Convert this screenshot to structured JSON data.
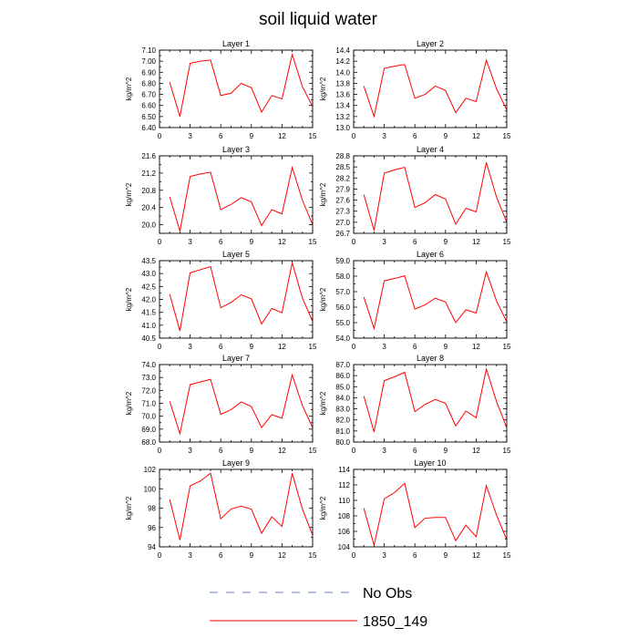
{
  "title": "soil liquid water",
  "colors": {
    "series": "#ff0000",
    "no_obs_line": "#6b7fd1",
    "axis": "#000000"
  },
  "legend": [
    {
      "label": "No Obs",
      "style": "dashed",
      "color": "#6b7fd1"
    },
    {
      "label": "1850_149",
      "style": "solid",
      "color": "#ff0000"
    }
  ],
  "chart_data": [
    {
      "type": "line",
      "title": "Layer 1",
      "xlabel": "",
      "ylabel": "kg/m^2",
      "xlim": [
        0,
        15
      ],
      "xticks": [
        "0",
        "3",
        "6",
        "9",
        "12",
        "15"
      ],
      "ylim": [
        6.4,
        7.1
      ],
      "yticks": [
        "6.40",
        "6.50",
        "6.60",
        "6.70",
        "6.80",
        "6.90",
        "7.00",
        "7.10"
      ],
      "x": [
        1,
        2,
        3,
        4,
        5,
        6,
        7,
        8,
        9,
        10,
        11,
        12,
        13,
        14,
        15
      ],
      "series": [
        {
          "name": "1850_149",
          "values": [
            6.81,
            6.5,
            6.98,
            7.0,
            7.01,
            6.69,
            6.71,
            6.8,
            6.76,
            6.54,
            6.69,
            6.66,
            7.06,
            6.77,
            6.59
          ]
        }
      ]
    },
    {
      "type": "line",
      "title": "Layer 2",
      "xlabel": "",
      "ylabel": "kg/m^2",
      "xlim": [
        0,
        15
      ],
      "xticks": [
        "0",
        "3",
        "6",
        "9",
        "12",
        "15"
      ],
      "ylim": [
        13.0,
        14.4
      ],
      "yticks": [
        "13.0",
        "13.2",
        "13.4",
        "13.6",
        "13.8",
        "14.0",
        "14.2",
        "14.4"
      ],
      "x": [
        1,
        2,
        3,
        4,
        5,
        6,
        7,
        8,
        9,
        10,
        11,
        12,
        13,
        14,
        15
      ],
      "series": [
        {
          "name": "1850_149",
          "values": [
            13.75,
            13.2,
            14.07,
            14.11,
            14.14,
            13.53,
            13.6,
            13.75,
            13.67,
            13.27,
            13.53,
            13.47,
            14.22,
            13.7,
            13.32
          ]
        }
      ]
    },
    {
      "type": "line",
      "title": "Layer 3",
      "xlabel": "",
      "ylabel": "kg/m^2",
      "xlim": [
        0,
        15
      ],
      "xticks": [
        "0",
        "3",
        "6",
        "9",
        "12",
        "15"
      ],
      "ylim": [
        19.8,
        21.6
      ],
      "yticks": [
        "20.0",
        "20.4",
        "20.8",
        "21.2",
        "21.6"
      ],
      "x": [
        1,
        2,
        3,
        4,
        5,
        6,
        7,
        8,
        9,
        10,
        11,
        12,
        13,
        14,
        15
      ],
      "series": [
        {
          "name": "1850_149",
          "values": [
            20.65,
            19.85,
            21.12,
            21.18,
            21.22,
            20.35,
            20.47,
            20.63,
            20.53,
            19.98,
            20.35,
            20.25,
            21.33,
            20.57,
            20.0
          ]
        }
      ]
    },
    {
      "type": "line",
      "title": "Layer 4",
      "xlabel": "",
      "ylabel": "kg/m^2",
      "xlim": [
        0,
        15
      ],
      "xticks": [
        "0",
        "3",
        "6",
        "9",
        "12",
        "15"
      ],
      "ylim": [
        26.7,
        28.8
      ],
      "yticks": [
        "26.7",
        "27.0",
        "27.3",
        "27.6",
        "27.9",
        "28.2",
        "28.5",
        "28.8"
      ],
      "x": [
        1,
        2,
        3,
        4,
        5,
        6,
        7,
        8,
        9,
        10,
        11,
        12,
        13,
        14,
        15
      ],
      "series": [
        {
          "name": "1850_149",
          "values": [
            27.75,
            26.78,
            28.33,
            28.42,
            28.49,
            27.4,
            27.53,
            27.75,
            27.63,
            26.95,
            27.38,
            27.28,
            28.62,
            27.68,
            27.0
          ]
        }
      ]
    },
    {
      "type": "line",
      "title": "Layer 5",
      "xlabel": "",
      "ylabel": "kg/m^2",
      "xlim": [
        0,
        15
      ],
      "xticks": [
        "0",
        "3",
        "6",
        "9",
        "12",
        "15"
      ],
      "ylim": [
        40.5,
        43.5
      ],
      "yticks": [
        "40.5",
        "41.0",
        "41.5",
        "42.0",
        "42.5",
        "43.0",
        "43.5"
      ],
      "x": [
        1,
        2,
        3,
        4,
        5,
        6,
        7,
        8,
        9,
        10,
        11,
        12,
        13,
        14,
        15
      ],
      "series": [
        {
          "name": "1850_149",
          "values": [
            42.2,
            40.78,
            43.03,
            43.15,
            43.27,
            41.68,
            41.88,
            42.18,
            42.02,
            41.05,
            41.65,
            41.48,
            43.42,
            42.05,
            41.15
          ]
        }
      ]
    },
    {
      "type": "line",
      "title": "Layer 6",
      "xlabel": "",
      "ylabel": "kg/m^2",
      "xlim": [
        0,
        15
      ],
      "xticks": [
        "0",
        "3",
        "6",
        "9",
        "12",
        "15"
      ],
      "ylim": [
        54.0,
        59.0
      ],
      "yticks": [
        "54.0",
        "55.0",
        "56.0",
        "57.0",
        "58.0",
        "59.0"
      ],
      "x": [
        1,
        2,
        3,
        4,
        5,
        6,
        7,
        8,
        9,
        10,
        11,
        12,
        13,
        14,
        15
      ],
      "series": [
        {
          "name": "1850_149",
          "values": [
            56.65,
            54.62,
            57.7,
            57.85,
            58.02,
            55.87,
            56.15,
            56.58,
            56.33,
            55.0,
            55.83,
            55.62,
            58.28,
            56.4,
            55.05
          ]
        }
      ]
    },
    {
      "type": "line",
      "title": "Layer 7",
      "xlabel": "",
      "ylabel": "kg/m^2",
      "xlim": [
        0,
        15
      ],
      "xticks": [
        "0",
        "3",
        "6",
        "9",
        "12",
        "15"
      ],
      "ylim": [
        68.0,
        74.0
      ],
      "yticks": [
        "68.0",
        "69.0",
        "70.0",
        "71.0",
        "72.0",
        "73.0",
        "74.0"
      ],
      "x": [
        1,
        2,
        3,
        4,
        5,
        6,
        7,
        8,
        9,
        10,
        11,
        12,
        13,
        14,
        15
      ],
      "series": [
        {
          "name": "1850_149",
          "values": [
            71.15,
            68.65,
            72.45,
            72.65,
            72.85,
            70.15,
            70.5,
            71.1,
            70.75,
            69.12,
            70.12,
            69.85,
            73.2,
            70.82,
            69.12
          ]
        }
      ]
    },
    {
      "type": "line",
      "title": "Layer 8",
      "xlabel": "",
      "ylabel": "kg/m^2",
      "xlim": [
        0,
        15
      ],
      "xticks": [
        "0",
        "3",
        "6",
        "9",
        "12",
        "15"
      ],
      "ylim": [
        80.0,
        87.0
      ],
      "yticks": [
        "80.0",
        "81.0",
        "82.0",
        "83.0",
        "84.0",
        "85.0",
        "86.0",
        "87.0"
      ],
      "x": [
        1,
        2,
        3,
        4,
        5,
        6,
        7,
        8,
        9,
        10,
        11,
        12,
        13,
        14,
        15
      ],
      "series": [
        {
          "name": "1850_149",
          "values": [
            84.15,
            80.92,
            85.55,
            85.9,
            86.3,
            82.75,
            83.4,
            83.85,
            83.5,
            81.45,
            82.8,
            82.2,
            86.6,
            83.65,
            81.3
          ]
        }
      ]
    },
    {
      "type": "line",
      "title": "Layer 9",
      "xlabel": "",
      "ylabel": "kg/m^2",
      "xlim": [
        0,
        15
      ],
      "xticks": [
        "0",
        "3",
        "6",
        "9",
        "12",
        "15"
      ],
      "ylim": [
        94,
        102
      ],
      "yticks": [
        "94",
        "96",
        "98",
        "100",
        "102"
      ],
      "x": [
        1,
        2,
        3,
        4,
        5,
        6,
        7,
        8,
        9,
        10,
        11,
        12,
        13,
        14,
        15
      ],
      "series": [
        {
          "name": "1850_149",
          "values": [
            98.9,
            94.7,
            100.3,
            100.8,
            101.6,
            96.9,
            97.9,
            98.2,
            97.9,
            95.4,
            97.1,
            96.1,
            101.6,
            97.9,
            95.2
          ]
        }
      ]
    },
    {
      "type": "line",
      "title": "Layer 10",
      "xlabel": "",
      "ylabel": "kg/m^2",
      "xlim": [
        0,
        15
      ],
      "xticks": [
        "0",
        "3",
        "6",
        "9",
        "12",
        "15"
      ],
      "ylim": [
        104,
        114
      ],
      "yticks": [
        "104",
        "106",
        "108",
        "110",
        "112",
        "114"
      ],
      "x": [
        1,
        2,
        3,
        4,
        5,
        6,
        7,
        8,
        9,
        10,
        11,
        12,
        13,
        14,
        15
      ],
      "series": [
        {
          "name": "1850_149",
          "values": [
            109.0,
            104.2,
            110.2,
            111.0,
            112.2,
            106.5,
            107.7,
            107.8,
            107.8,
            104.8,
            106.8,
            105.3,
            111.9,
            108.1,
            104.9
          ]
        }
      ]
    }
  ]
}
